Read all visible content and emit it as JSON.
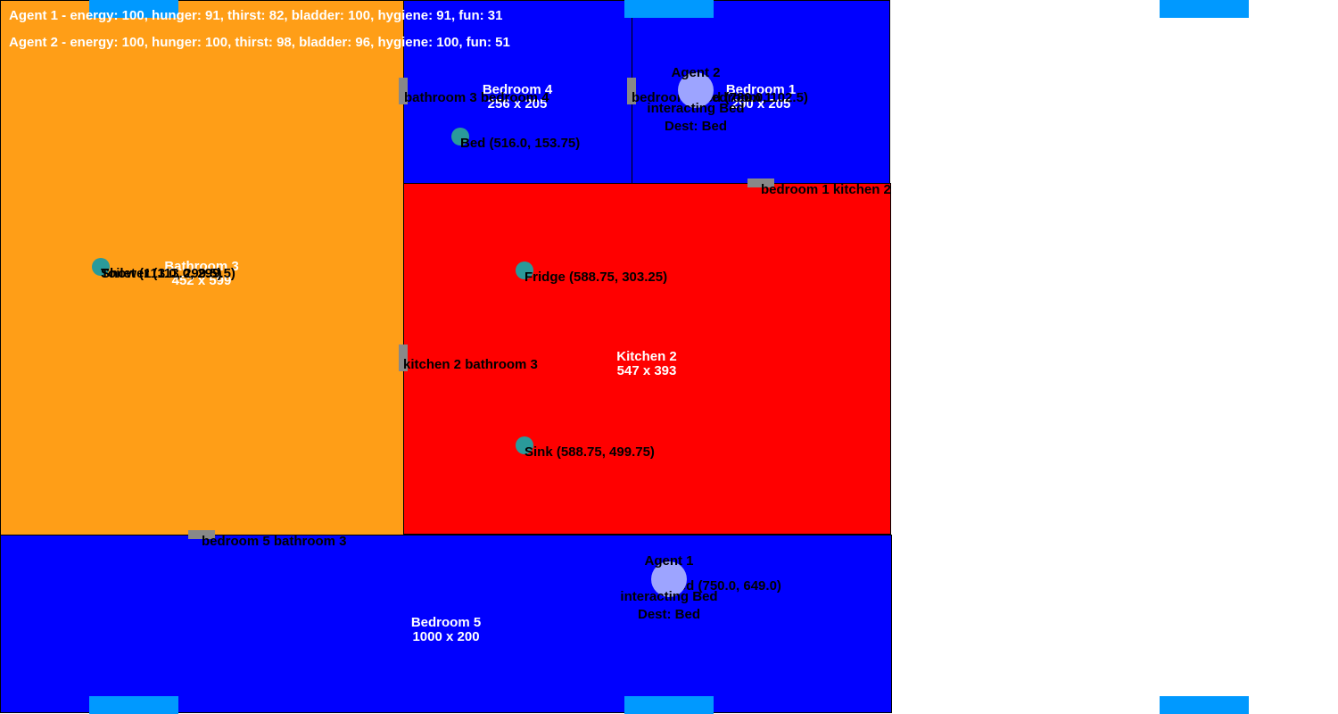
{
  "colors": {
    "bedroom": "#0000ff",
    "bathroom": "#ff9e17",
    "kitchen": "#ff0000",
    "window": "#0099ff",
    "door": "#888888",
    "object": "#2a9a9a",
    "agent": "#9da4ff"
  },
  "status": {
    "agent1": "Agent 1 - energy: 100, hunger: 91, thirst: 82, bladder: 100, hygiene: 91, fun: 31",
    "agent2": "Agent 2 - energy: 100, hunger: 100, thirst: 98, bladder: 96, hygiene: 100, fun: 51"
  },
  "rooms": {
    "bathroom3": {
      "name": "Bathroom 3",
      "size": "452 x 599"
    },
    "bedroom4": {
      "name": "Bedroom 4",
      "size": "256 x 205"
    },
    "bedroom1": {
      "name": "Bedroom 1",
      "size": "290 x 205"
    },
    "kitchen2": {
      "name": "Kitchen 2",
      "size": "547 x 393"
    },
    "bedroom5": {
      "name": "Bedroom 5",
      "size": "1000 x 200"
    }
  },
  "doors": {
    "bathroom3_bedroom4": "bathroom 3 bedroom 4",
    "bedroom4_bedroom1": "bedroom 4 bedroom 1",
    "bedroom1_kitchen2": "bedroom 1 kitchen 2",
    "kitchen2_bathroom3": "kitchen 2 bathroom 3",
    "bedroom5_bathroom3": "bedroom 5 bathroom 3"
  },
  "objects": {
    "toilet": "Toilet (113.0, 299.5)",
    "shower": "Shower (113.0, 299.5)",
    "bed4": "Bed (516.0, 153.75)",
    "bed1": "Bed (780.0, 102.5)",
    "fridge": "Fridge (588.75, 303.25)",
    "sink": "Sink (588.75, 499.75)",
    "bed5": "Bed (750.0, 649.0)"
  },
  "agents": {
    "agent1": {
      "name": "Agent 1",
      "action": "interacting Bed",
      "dest": "Dest: Bed"
    },
    "agent2": {
      "name": "Agent 2",
      "action": "interacting Bed",
      "dest": "Dest: Bed"
    }
  }
}
